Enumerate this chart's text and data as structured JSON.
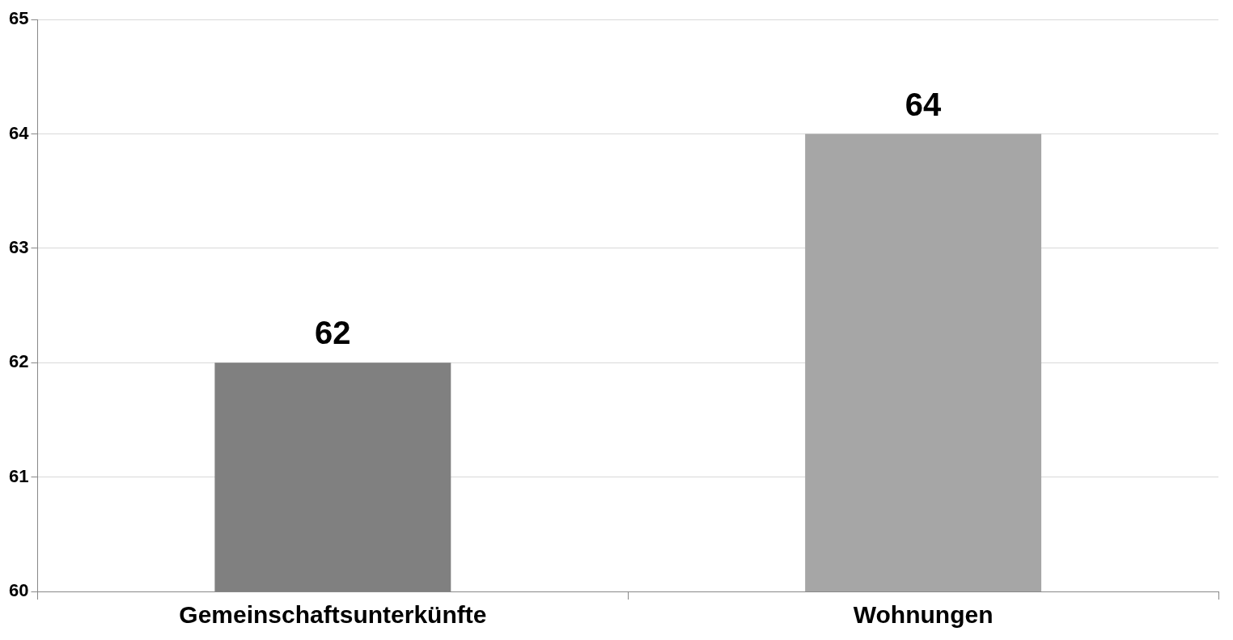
{
  "chart_data": {
    "type": "bar",
    "categories": [
      "Gemeinschaftsunterkünfte",
      "Wohnungen"
    ],
    "values": [
      62,
      64
    ],
    "colors": [
      "#808080",
      "#a6a6a6"
    ],
    "ylim": [
      60,
      65
    ],
    "yticks": [
      60,
      61,
      62,
      63,
      64,
      65
    ],
    "grid": "y",
    "data_labels": true,
    "legend": false
  }
}
